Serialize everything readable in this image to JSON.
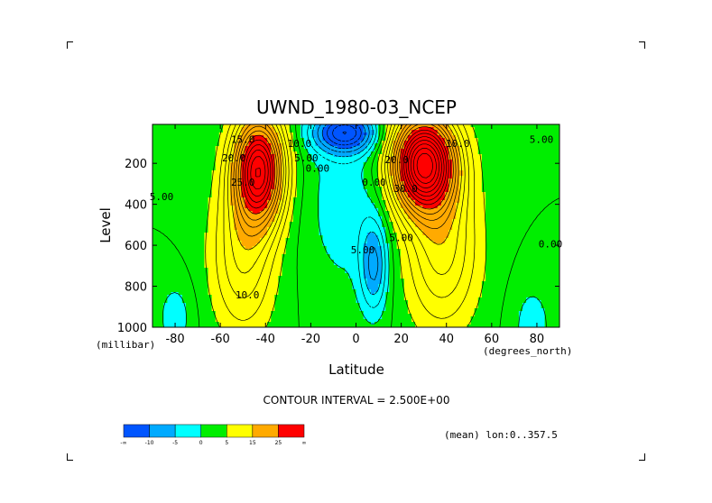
{
  "chart_data": {
    "type": "contour",
    "title": "UWND_1980-03_NCEP",
    "xlabel": "Latitude",
    "ylabel": "Level",
    "x_unit": "(degrees_north)",
    "y_unit": "(millibar)",
    "x_ticks": [
      -80,
      -60,
      -40,
      -20,
      0,
      20,
      40,
      60,
      80
    ],
    "x_tick_labels": [
      "-80",
      "-60",
      "-40",
      "-20",
      "0",
      "20",
      "40",
      "60",
      "80"
    ],
    "y_ticks": [
      200,
      400,
      600,
      800,
      1000
    ],
    "y_tick_labels": [
      "200",
      "400",
      "600",
      "800",
      "1000"
    ],
    "xlim": [
      -90,
      90
    ],
    "ylim": [
      1000,
      10
    ],
    "contour_interval": 2.5,
    "interval_text": "CONTOUR INTERVAL = 2.500E+00",
    "region_text": "(mean) lon:0..357.5",
    "fill_levels": [
      -1000,
      -10,
      -5,
      0,
      5,
      15,
      25,
      1000
    ],
    "fill_colors": [
      "#0055ff",
      "#00aaff",
      "#00ffff",
      "#00ee00",
      "#ffff00",
      "#ffaa00",
      "#ff0000"
    ],
    "colorbar_labels": [
      "-∞",
      "-10",
      "-5",
      "0",
      "5",
      "15",
      "25",
      "∞"
    ],
    "contour_labels": [
      {
        "text": "15.0",
        "lat": -50,
        "lev": 100
      },
      {
        "text": "20.0",
        "lat": -54,
        "lev": 190
      },
      {
        "text": "25.0",
        "lat": -50,
        "lev": 310
      },
      {
        "text": "10.0",
        "lat": -25,
        "lev": 120
      },
      {
        "text": "5.00",
        "lat": -22,
        "lev": 190
      },
      {
        "text": "0.00",
        "lat": -17,
        "lev": 240
      },
      {
        "text": "5.00",
        "lat": -86,
        "lev": 380
      },
      {
        "text": "10.0",
        "lat": -48,
        "lev": 860
      },
      {
        "text": "0.00",
        "lat": 8,
        "lev": 310
      },
      {
        "text": "5.00",
        "lat": 3,
        "lev": 640
      },
      {
        "text": "10.0",
        "lat": 45,
        "lev": 120
      },
      {
        "text": "20.0",
        "lat": 18,
        "lev": 200
      },
      {
        "text": "30.0",
        "lat": 22,
        "lev": 340
      },
      {
        "text": "5.00",
        "lat": 20,
        "lev": 580
      },
      {
        "text": "5.00",
        "lat": 82,
        "lev": 100
      },
      {
        "text": "0.00",
        "lat": 86,
        "lev": 610
      }
    ]
  }
}
